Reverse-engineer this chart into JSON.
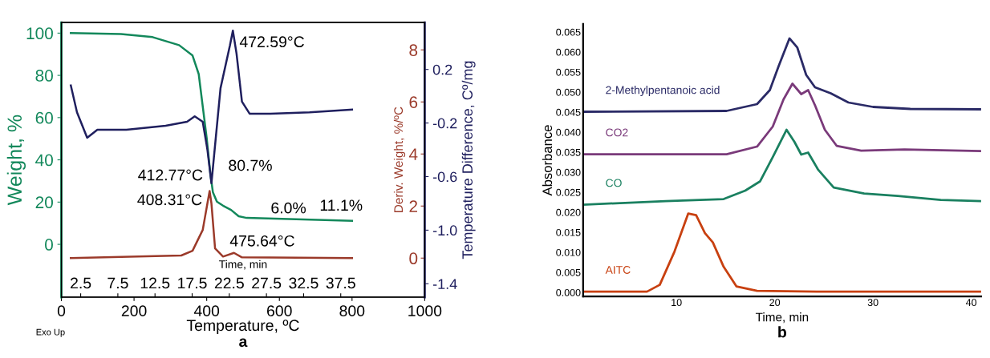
{
  "chart_data": [
    {
      "type": "line",
      "title": "a",
      "xlabel": "Temperature, ºC",
      "ylabel": "Weight, %",
      "y2label": "Deriv. Weight, %/ºC",
      "y3label": "Temperature Difference, Cº/mg",
      "x2label": "Time, min",
      "xlim": [
        0,
        1000
      ],
      "xticks": [
        0,
        200,
        400,
        600,
        800,
        1000
      ],
      "ylim": [
        -25,
        105
      ],
      "yticks": [
        0,
        20,
        40,
        60,
        80,
        100
      ],
      "y2lim": [
        -1.5,
        9.05
      ],
      "y2ticks": [
        0,
        2,
        4,
        6,
        8
      ],
      "y3lim": [
        -1.5,
        0.55
      ],
      "y3ticks": [
        -1.4,
        {
          "value": -1.0,
          "label": "-1.0"
        },
        -0.6,
        -0.2,
        0.2
      ],
      "x2lim": [
        -0.1,
        48.8
      ],
      "x2ticks": [
        2.5,
        7.5,
        12.5,
        17.5,
        22.5,
        27.5,
        32.5,
        37.5
      ],
      "series": [
        {
          "color": "#13885b",
          "axis": "y",
          "x": [
            26,
            164,
            251,
            324,
            361,
            378,
            389,
            400,
            410,
            417,
            428,
            445,
            467,
            488,
            510,
            800
          ],
          "values": [
            100,
            99.6,
            98.1,
            94.3,
            89.4,
            80.6,
            65.4,
            50.2,
            33.5,
            24.7,
            20.2,
            18.3,
            16.3,
            13.3,
            12.5,
            11.1
          ]
        },
        {
          "color": "#9b3a2a",
          "axis": "y2",
          "x": [
            26,
            330,
            361,
            389,
            408,
            413,
            423,
            445,
            475,
            497,
            800
          ],
          "values": [
            0,
            0.1,
            0.28,
            1.08,
            2.58,
            2.1,
            0.37,
            0.06,
            0.2,
            0.03,
            0
          ]
        },
        {
          "color": "#1f1f5e",
          "axis": "y3",
          "x": [
            26,
            43,
            71,
            99,
            179,
            287,
            346,
            367,
            389,
            402,
            413,
            438,
            464,
            472,
            482,
            497,
            518,
            575,
            683,
            800
          ],
          "values": [
            0.08,
            -0.12,
            -0.31,
            -0.25,
            -0.25,
            -0.22,
            -0.19,
            -0.15,
            -0.19,
            -0.4,
            -0.65,
            0.06,
            0.38,
            0.49,
            0.32,
            -0.04,
            -0.13,
            -0.13,
            -0.12,
            -0.1
          ]
        }
      ],
      "annotations": [
        "472.59°C",
        "412.77°C",
        "408.31°C",
        "80.7%",
        "6.0%",
        "11.1%",
        "475.64°C",
        "Exo Up"
      ],
      "grid": false
    },
    {
      "type": "line",
      "title": "b",
      "xlabel": "Time, min",
      "ylabel": "Absorbance",
      "xlim": [
        0.5,
        41
      ],
      "xticks": [
        10,
        20,
        30,
        40
      ],
      "ylim": [
        -0.001,
        0.067
      ],
      "yticks": [
        {
          "value": 0,
          "label": "0.000"
        },
        {
          "value": 0.005,
          "label": "0.005"
        },
        {
          "value": 0.01,
          "label": "0.010"
        },
        {
          "value": 0.015,
          "label": "0.015"
        },
        {
          "value": 0.02,
          "label": "0.020"
        },
        {
          "value": 0.025,
          "label": "0.025"
        },
        {
          "value": 0.03,
          "label": "0.030"
        },
        {
          "value": 0.035,
          "label": "0.035"
        },
        {
          "value": 0.04,
          "label": "0.040"
        },
        {
          "value": 0.045,
          "label": "0.045"
        },
        {
          "value": 0.05,
          "label": "0.050"
        },
        {
          "value": 0.055,
          "label": "0.055"
        },
        {
          "value": 0.06,
          "label": "0.060"
        },
        {
          "value": 0.065,
          "label": "0.065"
        }
      ],
      "series": [
        {
          "name": "2-Methylpentanoic acid",
          "color": "#2a2a66",
          "x": [
            0.5,
            15.1,
            18.2,
            19.5,
            20.4,
            21.5,
            22.3,
            23.2,
            24.1,
            25.7,
            27.5,
            30.0,
            33.8,
            41
          ],
          "values": [
            0.0451,
            0.0453,
            0.047,
            0.0505,
            0.0565,
            0.0634,
            0.0611,
            0.0543,
            0.0512,
            0.0497,
            0.0474,
            0.0463,
            0.0458,
            0.0457
          ]
        },
        {
          "name": "CO2",
          "color": "#7a3a7a",
          "x": [
            0.5,
            15.1,
            18.2,
            19.8,
            20.9,
            21.8,
            22.7,
            23.4,
            24.1,
            25.1,
            26.3,
            28.8,
            33.2,
            41
          ],
          "values": [
            0.0345,
            0.0345,
            0.0364,
            0.0414,
            0.0482,
            0.0521,
            0.0495,
            0.0505,
            0.0467,
            0.0406,
            0.0366,
            0.0354,
            0.0357,
            0.0353
          ]
        },
        {
          "name": "CO",
          "color": "#1a8060",
          "x": [
            0.5,
            8.9,
            14.8,
            17.0,
            18.5,
            19.8,
            21.2,
            22.0,
            22.7,
            23.4,
            24.4,
            26.0,
            29.1,
            32.5,
            36.9,
            41
          ],
          "values": [
            0.0219,
            0.0228,
            0.0233,
            0.0254,
            0.0277,
            0.0338,
            0.0406,
            0.0376,
            0.0344,
            0.0349,
            0.0307,
            0.0262,
            0.0247,
            0.0241,
            0.0231,
            0.0228
          ]
        },
        {
          "name": "AITC",
          "color": "#c84010",
          "x": [
            0.5,
            7.0,
            8.3,
            9.8,
            11.2,
            12.0,
            12.9,
            13.7,
            14.8,
            16.1,
            18.2,
            24.4,
            41
          ],
          "values": [
            0.0002,
            0.0002,
            0.0019,
            0.0102,
            0.0197,
            0.0193,
            0.0148,
            0.0125,
            0.0064,
            0.0015,
            0.0004,
            0.0002,
            0.0002
          ]
        }
      ],
      "grid": false
    }
  ]
}
